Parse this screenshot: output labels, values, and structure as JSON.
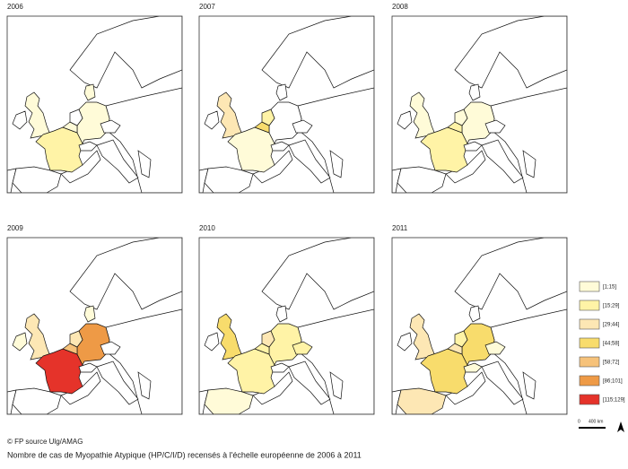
{
  "maps": [
    {
      "year": "2006",
      "classes": [
        0,
        null,
        1,
        0,
        0,
        null,
        0,
        null,
        null,
        null
      ]
    },
    {
      "year": "2007",
      "classes": [
        2,
        null,
        0,
        null,
        3,
        1,
        null,
        null,
        null,
        null
      ]
    },
    {
      "year": "2008",
      "classes": [
        0,
        null,
        1,
        0,
        1,
        0,
        null,
        null,
        null,
        null
      ]
    },
    {
      "year": "2009",
      "classes": [
        2,
        0,
        6,
        5,
        4,
        2,
        0,
        null,
        null,
        null
      ]
    },
    {
      "year": "2010",
      "classes": [
        3,
        null,
        1,
        1,
        1,
        2,
        null,
        0,
        null,
        1
      ]
    },
    {
      "year": "2011",
      "classes": [
        2,
        null,
        3,
        3,
        2,
        1,
        null,
        2,
        0,
        0
      ]
    }
  ],
  "legend": [
    {
      "label": "[1;15]",
      "color": "#fffbd8"
    },
    {
      "label": "[15;29]",
      "color": "#fff3a6"
    },
    {
      "label": "[29;44]",
      "color": "#fde7b4"
    },
    {
      "label": "[44;58]",
      "color": "#f8dc6c"
    },
    {
      "label": "[58;72]",
      "color": "#f6c27a"
    },
    {
      "label": "[86;101]",
      "color": "#ee9a46"
    },
    {
      "label": "[115;129]",
      "color": "#e5332a"
    }
  ],
  "scale": {
    "start": "0",
    "end": "400 km"
  },
  "credit": "© FP source Ulg/AMAG",
  "caption": "Nombre de cas de Myopathie Atypique  (HP/C/I/D) recensés  à l'échelle européenne de 2006 à 2011"
}
